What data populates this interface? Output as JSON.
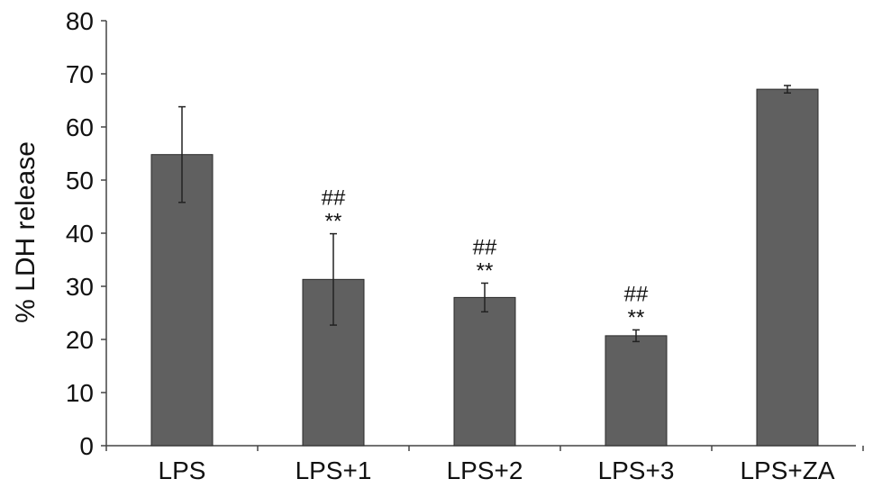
{
  "chart_data": {
    "type": "bar",
    "title": "",
    "xlabel": "",
    "ylabel": "% LDH release",
    "ylim": [
      0,
      80
    ],
    "yticks": [
      0,
      10,
      20,
      30,
      40,
      50,
      60,
      70,
      80
    ],
    "grid": false,
    "legend": "none",
    "categories": [
      "LPS",
      "LPS+1",
      "LPS+2",
      "LPS+3",
      "LPS+ZA"
    ],
    "values": [
      54.8,
      31.3,
      27.9,
      20.7,
      67.1
    ],
    "errors": [
      9.0,
      8.6,
      2.7,
      1.1,
      0.7
    ],
    "annotations": [
      {
        "category": "LPS+1",
        "lines": [
          "##",
          "**"
        ]
      },
      {
        "category": "LPS+2",
        "lines": [
          "##",
          "**"
        ]
      },
      {
        "category": "LPS+3",
        "lines": [
          "##",
          "**"
        ]
      }
    ],
    "colors": {
      "bar": "#606060",
      "bar_edge": "#2a2a2a",
      "axis": "#444444",
      "text": "#111111"
    }
  }
}
